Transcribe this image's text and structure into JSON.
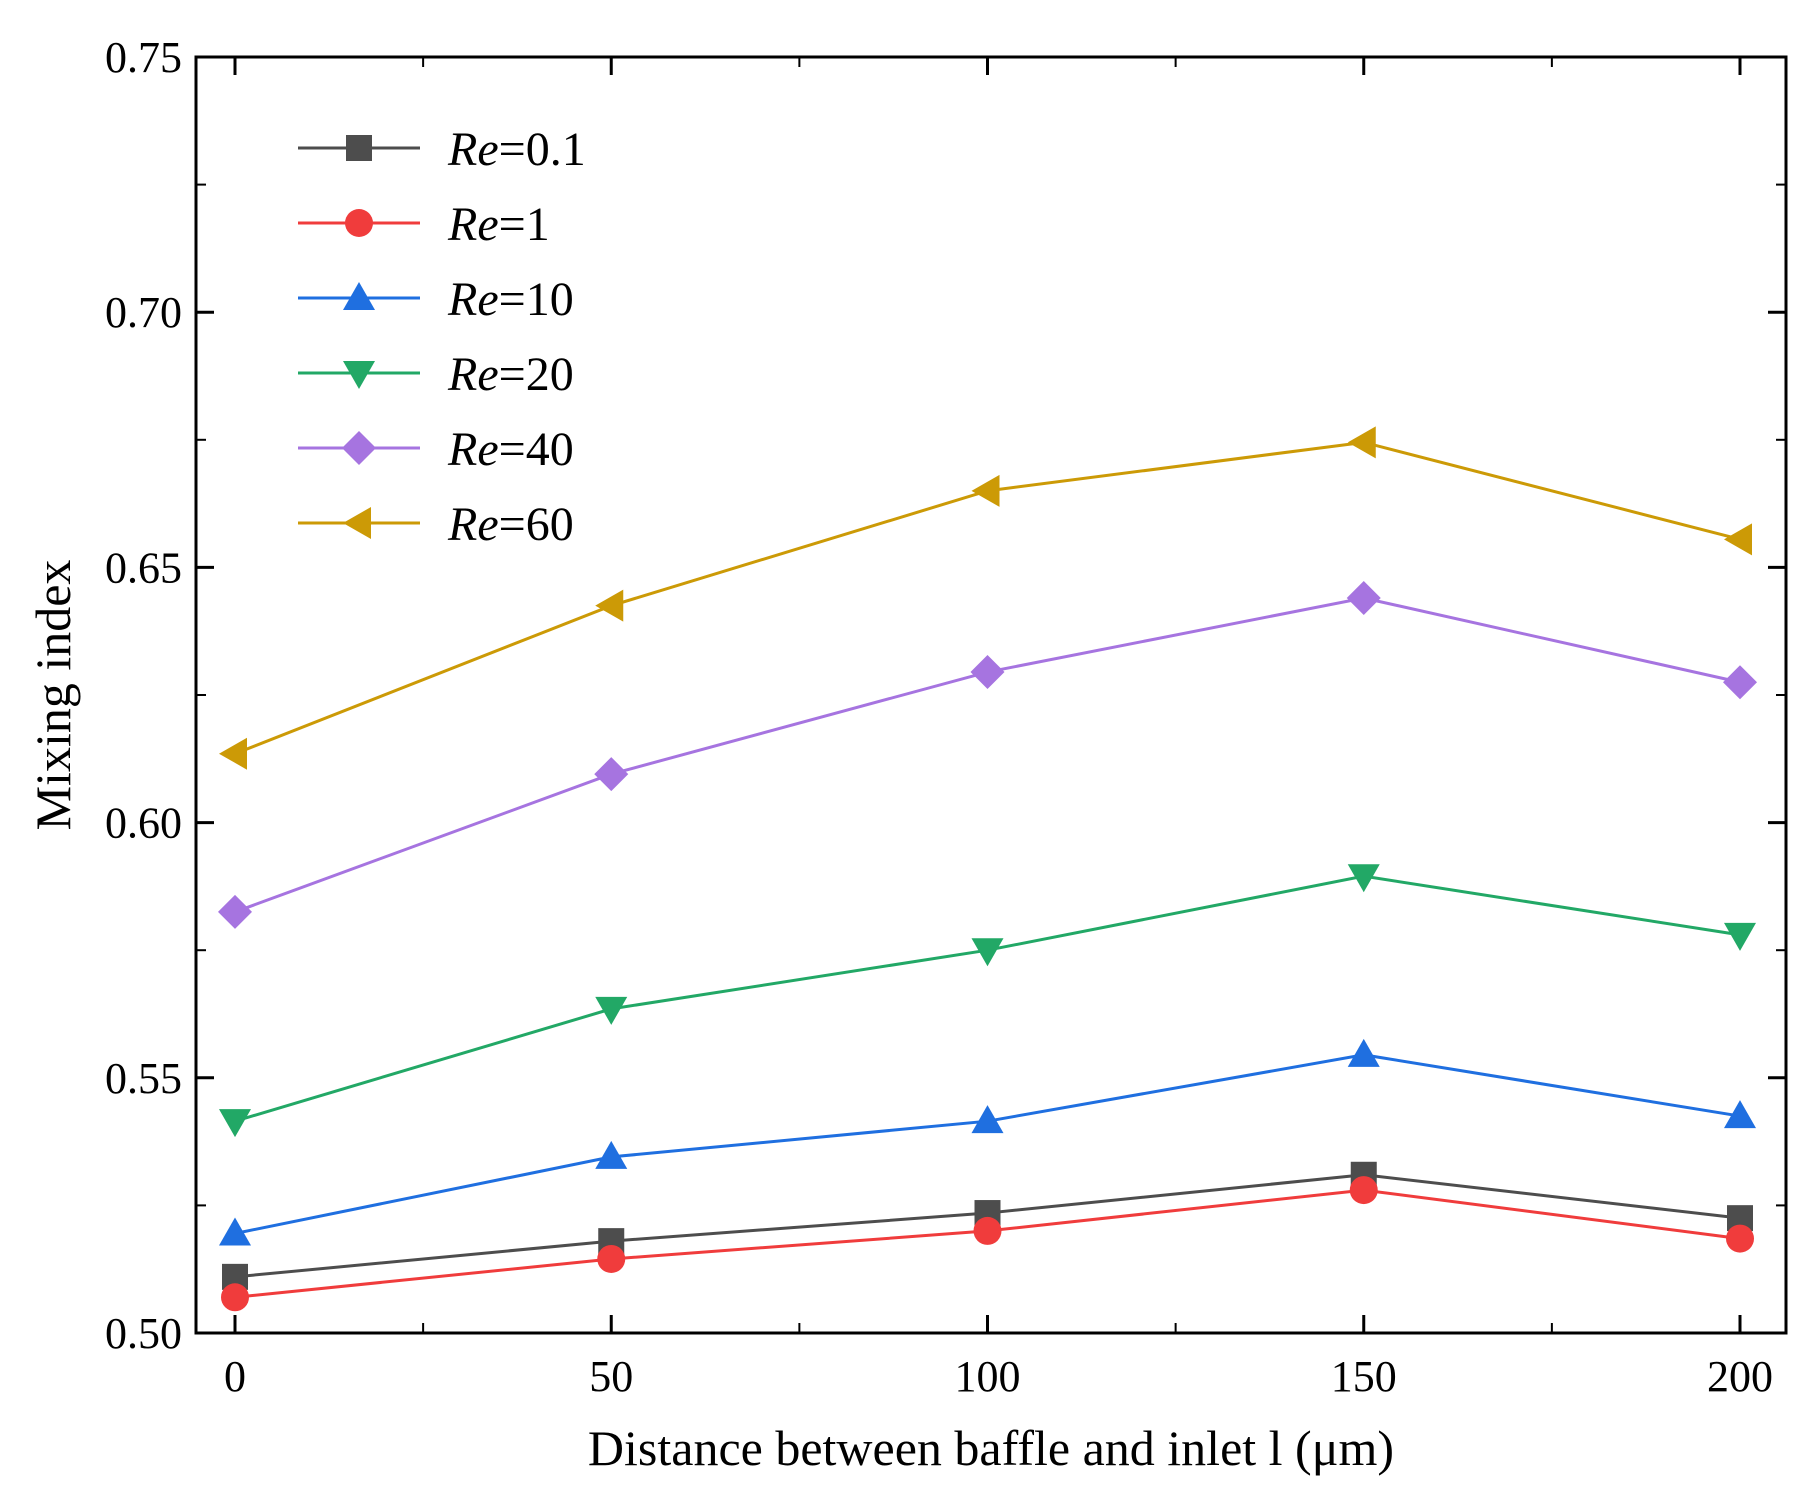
{
  "chart_data": {
    "type": "line",
    "title": "",
    "xlabel": "Distance between baffle and inlet l (μm)",
    "ylabel": "Mixing index",
    "xlim": [
      -5,
      205
    ],
    "ylim": [
      0.5,
      0.75
    ],
    "x": [
      0,
      50,
      100,
      150,
      200
    ],
    "xticks": [
      0,
      50,
      100,
      150,
      200
    ],
    "xtick_labels": [
      "0",
      "50",
      "100",
      "150",
      "200"
    ],
    "yticks": [
      0.5,
      0.55,
      0.6,
      0.65,
      0.7,
      0.75
    ],
    "ytick_labels": [
      "0.50",
      "0.55",
      "0.60",
      "0.65",
      "0.70",
      "0.75"
    ],
    "grid": false,
    "legend_position": "top-left",
    "series": [
      {
        "name": "Re=0.1",
        "name_italic": "Re",
        "name_rest": "=0.1",
        "color": "#4d4d4d",
        "marker": "square",
        "values": [
          0.511,
          0.518,
          0.5235,
          0.531,
          0.5225
        ]
      },
      {
        "name": "Re=1",
        "name_italic": "Re",
        "name_rest": "=1",
        "color": "#f03c3c",
        "marker": "circle",
        "values": [
          0.507,
          0.5145,
          0.52,
          0.528,
          0.5185
        ]
      },
      {
        "name": "Re=10",
        "name_italic": "Re",
        "name_rest": "=10",
        "color": "#1f6fe0",
        "marker": "triangle-up",
        "values": [
          0.5195,
          0.5345,
          0.5415,
          0.5545,
          0.5425
        ]
      },
      {
        "name": "Re=20",
        "name_italic": "Re",
        "name_rest": "=20",
        "color": "#22a866",
        "marker": "triangle-down",
        "values": [
          0.5415,
          0.5635,
          0.575,
          0.5895,
          0.578
        ]
      },
      {
        "name": "Re=40",
        "name_italic": "Re",
        "name_rest": "=40",
        "color": "#a674e0",
        "marker": "diamond",
        "values": [
          0.5825,
          0.6095,
          0.6295,
          0.644,
          0.6275
        ]
      },
      {
        "name": "Re=60",
        "name_italic": "Re",
        "name_rest": "=60",
        "color": "#cc9a06",
        "marker": "triangle-left",
        "values": [
          0.6135,
          0.6425,
          0.665,
          0.6745,
          0.6555
        ]
      }
    ]
  }
}
